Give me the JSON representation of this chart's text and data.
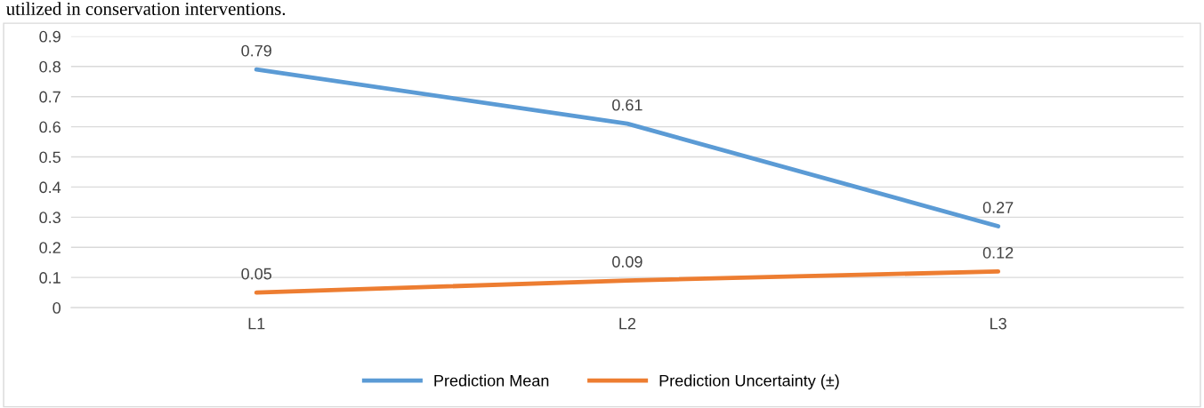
{
  "chart_data": {
    "type": "line",
    "categories": [
      "L1",
      "L2",
      "L3"
    ],
    "series": [
      {
        "name": "Prediction Mean",
        "color": "#5b9bd5",
        "values": [
          0.79,
          0.61,
          0.27
        ]
      },
      {
        "name": "Prediction Uncertainty (±)",
        "color": "#ed7d31",
        "values": [
          0.05,
          0.09,
          0.12
        ]
      }
    ],
    "ylim": [
      0,
      0.9
    ],
    "yticks": [
      0,
      0.1,
      0.2,
      0.3,
      0.4,
      0.5,
      0.6,
      0.7,
      0.8,
      0.9
    ],
    "grid": "y",
    "legend": "bottom",
    "data_labels": true,
    "marker": "none",
    "line_style": "solid",
    "annotations": [
      "utilized in conservation interventions."
    ]
  }
}
